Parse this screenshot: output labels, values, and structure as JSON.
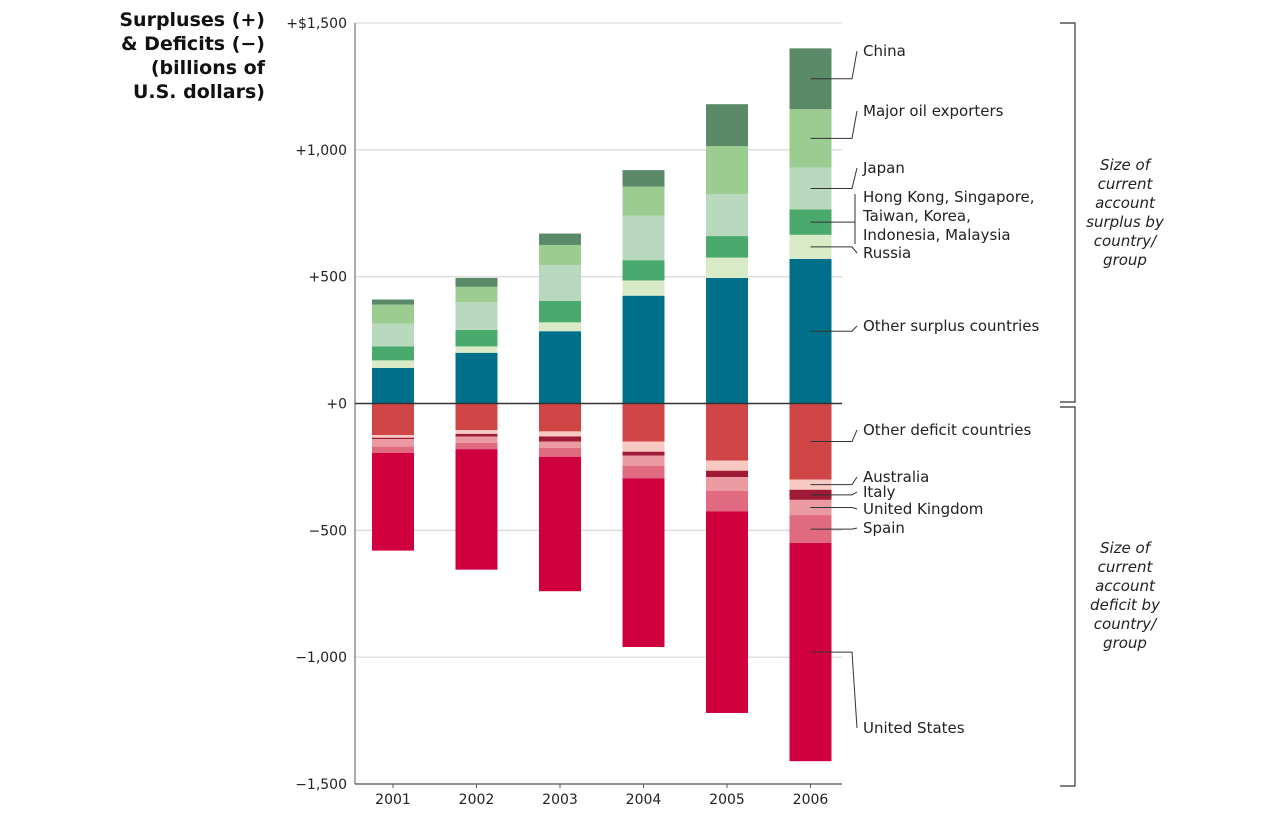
{
  "chart_data": {
    "type": "bar",
    "stacked": true,
    "title_lines": [
      "Surpluses (+)",
      "& Deficits (−)",
      "(billions of",
      "U.S. dollars)"
    ],
    "categories": [
      "2001",
      "2002",
      "2003",
      "2004",
      "2005",
      "2006"
    ],
    "ylim": [
      -1500,
      1500
    ],
    "yticks": [
      {
        "value": 1500,
        "label": "+$1,500"
      },
      {
        "value": 1000,
        "label": "+1,000"
      },
      {
        "value": 500,
        "label": "+500"
      },
      {
        "value": 0,
        "label": "+0"
      },
      {
        "value": -500,
        "label": "−500"
      },
      {
        "value": -1000,
        "label": "−1,000"
      },
      {
        "value": -1500,
        "label": "−1,500"
      }
    ],
    "grid": true,
    "surplus_series": [
      {
        "name": "Other surplus countries",
        "color": "#00708a",
        "values": [
          140,
          200,
          285,
          425,
          495,
          570
        ]
      },
      {
        "name": "Russia",
        "color": "#d9ebc6",
        "values": [
          30,
          25,
          35,
          60,
          80,
          95
        ]
      },
      {
        "name": "Hong Kong, Singapore, Taiwan, Korea, Indonesia, Malaysia",
        "color": "#4aa96c",
        "values": [
          55,
          65,
          85,
          80,
          85,
          100
        ]
      },
      {
        "name": "Japan",
        "color": "#b9d9bf",
        "values": [
          90,
          110,
          140,
          175,
          165,
          165
        ]
      },
      {
        "name": "Major oil exporters",
        "color": "#9ccc8f",
        "values": [
          75,
          60,
          80,
          115,
          190,
          230
        ]
      },
      {
        "name": "China",
        "color": "#5a8a68",
        "values": [
          20,
          35,
          45,
          65,
          165,
          240
        ]
      }
    ],
    "deficit_series": [
      {
        "name": "Other deficit countries",
        "color": "#d04545",
        "values": [
          -125,
          -105,
          -110,
          -150,
          -225,
          -300
        ]
      },
      {
        "name": "Australia",
        "color": "#f8c9c2",
        "values": [
          -10,
          -15,
          -20,
          -40,
          -40,
          -40
        ]
      },
      {
        "name": "Italy",
        "color": "#9e1a36",
        "values": [
          -5,
          -10,
          -20,
          -15,
          -25,
          -40
        ]
      },
      {
        "name": "United Kingdom",
        "color": "#eb9aa2",
        "values": [
          -30,
          -25,
          -25,
          -40,
          -55,
          -60
        ]
      },
      {
        "name": "Spain",
        "color": "#e06a80",
        "values": [
          -25,
          -25,
          -35,
          -50,
          -80,
          -110
        ]
      },
      {
        "name": "United States",
        "color": "#d0003f",
        "values": [
          -385,
          -475,
          -530,
          -665,
          -795,
          -860
        ]
      }
    ],
    "series_labels": [
      {
        "text_lines": [
          "China"
        ],
        "series": "China"
      },
      {
        "text_lines": [
          "Major oil exporters"
        ],
        "series": "Major oil exporters"
      },
      {
        "text_lines": [
          "Japan"
        ],
        "series": "Japan"
      },
      {
        "text_lines": [
          "Hong Kong, Singapore,",
          "Taiwan, Korea,",
          "Indonesia, Malaysia"
        ],
        "series": "Hong Kong, Singapore, Taiwan, Korea, Indonesia, Malaysia"
      },
      {
        "text_lines": [
          "Russia"
        ],
        "series": "Russia"
      },
      {
        "text_lines": [
          "Other surplus countries"
        ],
        "series": "Other surplus countries"
      },
      {
        "text_lines": [
          "Other deficit countries"
        ],
        "series": "Other deficit countries"
      },
      {
        "text_lines": [
          "Australia"
        ],
        "series": "Australia"
      },
      {
        "text_lines": [
          "Italy"
        ],
        "series": "Italy"
      },
      {
        "text_lines": [
          "United Kingdom"
        ],
        "series": "United Kingdom"
      },
      {
        "text_lines": [
          "Spain"
        ],
        "series": "Spain"
      },
      {
        "text_lines": [
          "United States"
        ],
        "series": "United States"
      }
    ],
    "surplus_note_lines": [
      "Size of",
      "current",
      "account",
      "surplus by",
      "country/",
      "group"
    ],
    "deficit_note_lines": [
      "Size of",
      "current",
      "account",
      "deficit by",
      "country/",
      "group"
    ]
  }
}
